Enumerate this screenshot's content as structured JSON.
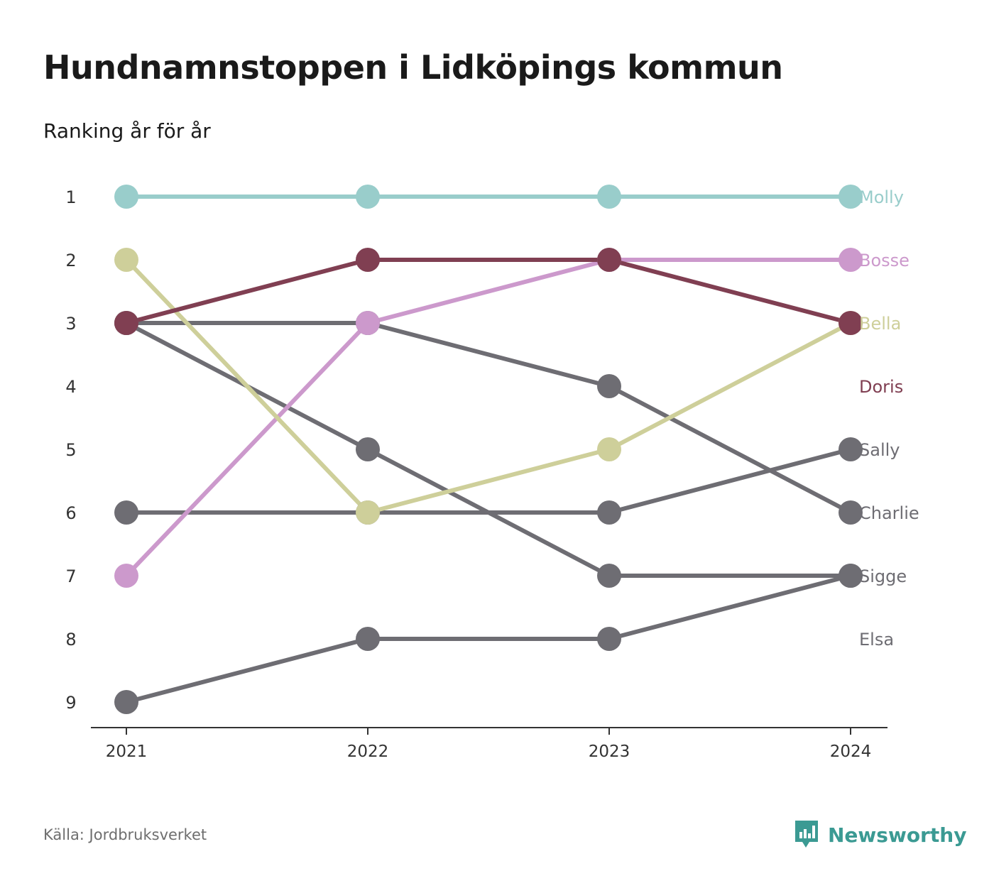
{
  "title": "Hundnamnstoppen i Lidköpings kommun",
  "subtitle": "Ranking år för år",
  "source": "Källa: Jordbruksverket",
  "brand": {
    "name": "Newsworthy",
    "icon": "newsworthy-logo-icon",
    "color": "#3b9a93"
  },
  "chart_data": {
    "type": "line",
    "x": [
      "2021",
      "2022",
      "2023",
      "2024"
    ],
    "y_ticks": [
      "1",
      "2",
      "3",
      "4",
      "5",
      "6",
      "7",
      "8",
      "9"
    ],
    "ylim": [
      1,
      9
    ],
    "y_reversed": true,
    "grid": false,
    "legend": "end-labels",
    "series": [
      {
        "name": "Molly",
        "color": "#99cdcb",
        "values": [
          1,
          1,
          1,
          1
        ]
      },
      {
        "name": "Bosse",
        "color": "#cc99cc",
        "values": [
          7,
          3,
          2,
          2
        ]
      },
      {
        "name": "Bella",
        "color": "#cecf9a",
        "values": [
          2,
          6,
          5,
          3
        ]
      },
      {
        "name": "Doris",
        "color": "#803f52",
        "values": [
          3,
          2,
          2,
          3
        ]
      },
      {
        "name": "Sally",
        "color": "#6e6d73",
        "values": [
          6,
          6,
          6,
          5
        ]
      },
      {
        "name": "Charlie",
        "color": "#6e6d73",
        "values": [
          3,
          3,
          4,
          6
        ]
      },
      {
        "name": "Sigge",
        "color": "#6e6d73",
        "values": [
          3,
          5,
          7,
          7
        ]
      },
      {
        "name": "Elsa",
        "color": "#6e6d73",
        "values": [
          9,
          8,
          8,
          7
        ]
      }
    ]
  }
}
